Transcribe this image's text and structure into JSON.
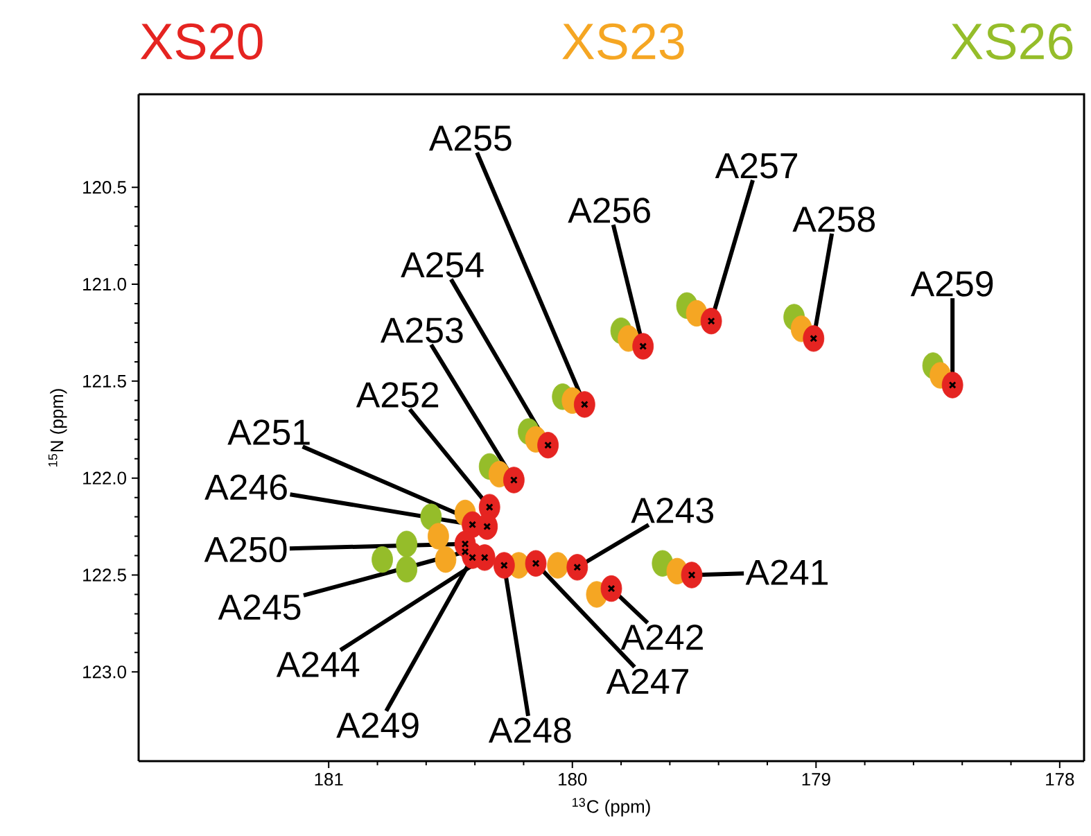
{
  "chart_data": {
    "type": "scatter",
    "xlabel": "$^{13}$C (ppm)",
    "ylabel": "$^{15}$N (ppm)",
    "legend": "top",
    "grid": false,
    "xlim": [
      181.78,
      177.9
    ],
    "ylim": [
      123.46,
      120.02
    ],
    "xticks": [
      181,
      180,
      179,
      178
    ],
    "yticks": [
      120.5,
      {
        "value": 121,
        "label": "121.0"
      },
      121.5,
      {
        "value": 122,
        "label": "122.0"
      },
      122.5,
      {
        "value": 123,
        "label": "123.0"
      }
    ],
    "series": [
      {
        "name": "XS20",
        "color": "#e52421",
        "x": [
          178.44,
          179.01,
          179.43,
          179.71,
          179.95,
          180.1,
          180.24,
          180.34,
          180.41,
          180.35,
          180.44,
          180.41,
          180.36,
          180.28,
          180.15,
          179.98,
          179.84,
          179.51
        ],
        "values": [
          121.52,
          121.28,
          121.19,
          121.32,
          121.62,
          121.83,
          122.01,
          122.15,
          122.24,
          122.25,
          122.34,
          122.4,
          122.41,
          122.45,
          122.44,
          122.46,
          122.57,
          122.5
        ]
      },
      {
        "name": "XS23",
        "color": "#f5a623",
        "x": [
          178.49,
          179.06,
          179.49,
          179.77,
          180.0,
          180.15,
          180.3,
          180.44,
          180.55,
          180.52,
          180.22,
          180.06,
          179.9,
          179.57
        ],
        "values": [
          121.47,
          121.23,
          121.15,
          121.28,
          121.6,
          121.8,
          121.98,
          122.18,
          122.3,
          122.42,
          122.45,
          122.45,
          122.6,
          122.48
        ]
      },
      {
        "name": "XS26",
        "color": "#95bd2a",
        "x": [
          178.52,
          179.09,
          179.53,
          179.8,
          180.04,
          180.18,
          180.34,
          180.58,
          180.68,
          180.78,
          180.68,
          179.63
        ],
        "values": [
          121.42,
          121.17,
          121.11,
          121.24,
          121.58,
          121.76,
          121.94,
          122.2,
          122.34,
          122.42,
          122.47,
          122.44
        ]
      }
    ],
    "annotations": [
      {
        "text": "A241",
        "x": 179.51,
        "y": 122.5
      },
      {
        "text": "A242",
        "x": 179.84,
        "y": 122.57
      },
      {
        "text": "A243",
        "x": 179.98,
        "y": 122.46
      },
      {
        "text": "A244",
        "x": 180.36,
        "y": 122.41
      },
      {
        "text": "A245",
        "x": 180.44,
        "y": 122.38
      },
      {
        "text": "A246",
        "x": 180.41,
        "y": 122.24
      },
      {
        "text": "A247",
        "x": 180.15,
        "y": 122.44
      },
      {
        "text": "A248",
        "x": 180.28,
        "y": 122.45
      },
      {
        "text": "A249",
        "x": 180.41,
        "y": 122.41
      },
      {
        "text": "A250",
        "x": 180.44,
        "y": 122.34
      },
      {
        "text": "A251",
        "x": 180.35,
        "y": 122.25
      },
      {
        "text": "A252",
        "x": 180.34,
        "y": 122.15
      },
      {
        "text": "A253",
        "x": 180.24,
        "y": 122.01
      },
      {
        "text": "A254",
        "x": 180.1,
        "y": 121.83
      },
      {
        "text": "A255",
        "x": 179.95,
        "y": 121.62
      },
      {
        "text": "A256",
        "x": 179.71,
        "y": 121.32
      },
      {
        "text": "A257",
        "x": 179.43,
        "y": 121.19
      },
      {
        "text": "A258",
        "x": 179.01,
        "y": 121.28
      },
      {
        "text": "A259",
        "x": 178.44,
        "y": 121.52
      }
    ]
  }
}
